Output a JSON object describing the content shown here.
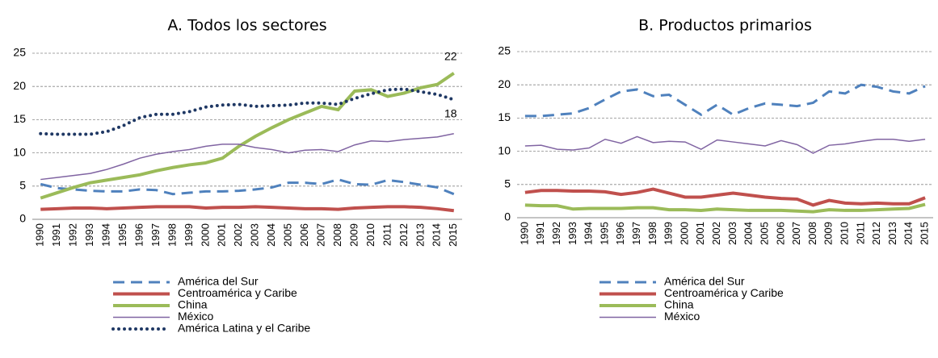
{
  "chart_data": [
    {
      "type": "line",
      "title": "A. Todos los sectores",
      "categories": [
        "1990",
        "1991",
        "1992",
        "1993",
        "1994",
        "1995",
        "1996",
        "1997",
        "1998",
        "1999",
        "2000",
        "2001",
        "2002",
        "2003",
        "2004",
        "2005",
        "2006",
        "2007",
        "2008",
        "2009",
        "2010",
        "2011",
        "2012",
        "2013",
        "2014",
        "2015"
      ],
      "ylim": [
        0,
        25
      ],
      "yticks": [
        0,
        5,
        10,
        15,
        20,
        25
      ],
      "grid": true,
      "series": [
        {
          "name": "América del Sur",
          "color": "#4f81bd",
          "style": "dashed",
          "values": [
            5.3,
            4.7,
            4.5,
            4.3,
            4.2,
            4.2,
            4.5,
            4.4,
            3.8,
            4.0,
            4.2,
            4.2,
            4.3,
            4.5,
            4.8,
            5.5,
            5.5,
            5.3,
            6.0,
            5.3,
            5.2,
            5.9,
            5.6,
            5.2,
            4.8,
            3.8
          ]
        },
        {
          "name": "Centroamérica y  Caribe",
          "color": "#c0504d",
          "style": "solid",
          "values": [
            1.5,
            1.6,
            1.7,
            1.7,
            1.6,
            1.7,
            1.8,
            1.9,
            1.9,
            1.9,
            1.7,
            1.8,
            1.8,
            1.9,
            1.8,
            1.7,
            1.6,
            1.6,
            1.5,
            1.7,
            1.8,
            1.9,
            1.9,
            1.8,
            1.6,
            1.3
          ]
        },
        {
          "name": "China",
          "color": "#9bbb59",
          "style": "solid",
          "label_last": true,
          "values": [
            3.2,
            4.0,
            4.8,
            5.5,
            5.9,
            6.3,
            6.7,
            7.3,
            7.8,
            8.2,
            8.5,
            9.2,
            11.0,
            12.5,
            13.8,
            15.0,
            16.0,
            17.0,
            16.5,
            19.3,
            19.5,
            18.5,
            19.0,
            19.8,
            20.3,
            22
          ]
        },
        {
          "name": "México",
          "color": "#8064a2",
          "style": "thin",
          "values": [
            6.0,
            6.3,
            6.6,
            6.9,
            7.5,
            8.3,
            9.2,
            9.8,
            10.2,
            10.5,
            11.0,
            11.3,
            11.3,
            10.8,
            10.5,
            10.0,
            10.4,
            10.5,
            10.2,
            11.2,
            11.8,
            11.7,
            12.0,
            12.2,
            12.4,
            12.9
          ]
        },
        {
          "name": "América Latina y el Caribe",
          "color": "#1f3864",
          "style": "dotted",
          "label_last": true,
          "values": [
            12.9,
            12.8,
            12.8,
            12.8,
            13.2,
            14.1,
            15.3,
            15.8,
            15.8,
            16.2,
            16.9,
            17.2,
            17.3,
            17.0,
            17.1,
            17.2,
            17.5,
            17.5,
            17.3,
            18.2,
            18.9,
            19.5,
            19.6,
            19.2,
            18.8,
            18
          ]
        }
      ]
    },
    {
      "type": "line",
      "title": "B. Productos primarios",
      "categories": [
        "1990",
        "1991",
        "1992",
        "1993",
        "1994",
        "1995",
        "1996",
        "1997",
        "1998",
        "1999",
        "2000",
        "2001",
        "2002",
        "2003",
        "2004",
        "2005",
        "2006",
        "2007",
        "2008",
        "2009",
        "2010",
        "2011",
        "2012",
        "2013",
        "2014",
        "2015"
      ],
      "ylim": [
        0,
        25
      ],
      "yticks": [
        0,
        5,
        10,
        15,
        20,
        25
      ],
      "grid": true,
      "series": [
        {
          "name": "América del Sur",
          "color": "#4f81bd",
          "style": "dashed",
          "values": [
            15.3,
            15.3,
            15.5,
            15.7,
            16.5,
            17.8,
            19.0,
            19.3,
            18.3,
            18.5,
            17.0,
            15.5,
            17.0,
            15.5,
            16.5,
            17.2,
            17.0,
            16.8,
            17.3,
            19.0,
            18.7,
            20.0,
            19.7,
            19.0,
            18.7,
            19.8
          ]
        },
        {
          "name": "Centroamérica y  Caribe",
          "color": "#c0504d",
          "style": "solid",
          "values": [
            3.8,
            4.1,
            4.1,
            4.0,
            4.0,
            3.9,
            3.5,
            3.8,
            4.3,
            3.7,
            3.1,
            3.1,
            3.4,
            3.7,
            3.4,
            3.1,
            2.9,
            2.8,
            1.9,
            2.6,
            2.2,
            2.1,
            2.2,
            2.1,
            2.1,
            3.0
          ]
        },
        {
          "name": "China",
          "color": "#9bbb59",
          "style": "solid",
          "values": [
            1.9,
            1.8,
            1.8,
            1.3,
            1.4,
            1.4,
            1.4,
            1.5,
            1.5,
            1.2,
            1.2,
            1.1,
            1.3,
            1.2,
            1.1,
            1.1,
            1.1,
            1.0,
            0.9,
            1.2,
            1.1,
            1.1,
            1.2,
            1.3,
            1.4,
            2.0
          ]
        },
        {
          "name": "México",
          "color": "#8064a2",
          "style": "thin",
          "values": [
            10.8,
            10.9,
            10.3,
            10.2,
            10.5,
            11.8,
            11.2,
            12.2,
            11.3,
            11.5,
            11.4,
            10.3,
            11.7,
            11.4,
            11.1,
            10.8,
            11.6,
            11.0,
            9.7,
            10.9,
            11.1,
            11.5,
            11.8,
            11.8,
            11.5,
            11.8
          ]
        }
      ]
    }
  ]
}
